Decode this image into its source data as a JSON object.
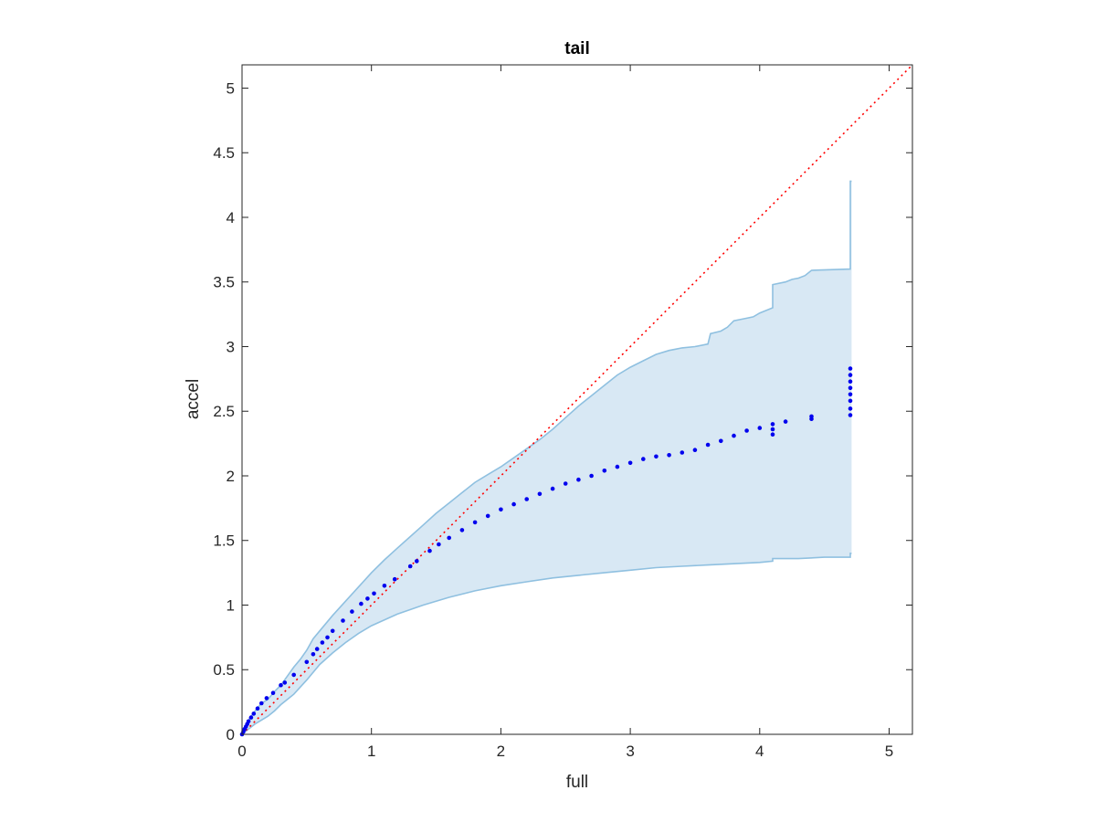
{
  "chart_data": {
    "type": "scatter",
    "title": "tail",
    "xlabel": "full",
    "ylabel": "accel",
    "xlim": [
      0,
      5.18
    ],
    "ylim": [
      0,
      5.18
    ],
    "xticks": [
      0,
      1,
      2,
      3,
      4,
      5
    ],
    "xtick_labels": [
      "0",
      "1",
      "2",
      "3",
      "4",
      "5"
    ],
    "yticks": [
      0,
      0.5,
      1,
      1.5,
      2,
      2.5,
      3,
      3.5,
      4,
      4.5,
      5
    ],
    "ytick_labels": [
      "0",
      "0.5",
      "1",
      "1.5",
      "2",
      "2.5",
      "3",
      "3.5",
      "4",
      "4.5",
      "5"
    ],
    "grid": false,
    "colors": {
      "points": "#0000ee",
      "band_fill": "#d8e8f4",
      "band_edge": "#8fc0e0",
      "reference_line": "#ff0000",
      "axes": "#262626"
    },
    "series": [
      {
        "kind": "points",
        "x": [
          0.0,
          0.01,
          0.02,
          0.03,
          0.04,
          0.05,
          0.07,
          0.09,
          0.12,
          0.15,
          0.19,
          0.24,
          0.3,
          0.33,
          0.4,
          0.5,
          0.55,
          0.58,
          0.62,
          0.66,
          0.7,
          0.78,
          0.85,
          0.92,
          0.97,
          1.02,
          1.1,
          1.18,
          1.3,
          1.35,
          1.45,
          1.52,
          1.6,
          1.7,
          1.8,
          1.9,
          2.0,
          2.1,
          2.2,
          2.3,
          2.4,
          2.5,
          2.6,
          2.7,
          2.8,
          2.9,
          3.0,
          3.1,
          3.2,
          3.3,
          3.4,
          3.5,
          3.6,
          3.7,
          3.8,
          3.9,
          4.0,
          4.1,
          4.1,
          4.1,
          4.2,
          4.4,
          4.4,
          4.7,
          4.7,
          4.7,
          4.7,
          4.7,
          4.7,
          4.7,
          4.7
        ],
        "y": [
          0.0,
          0.02,
          0.04,
          0.06,
          0.08,
          0.1,
          0.13,
          0.16,
          0.2,
          0.24,
          0.28,
          0.32,
          0.38,
          0.4,
          0.46,
          0.56,
          0.62,
          0.66,
          0.71,
          0.75,
          0.8,
          0.88,
          0.95,
          1.01,
          1.05,
          1.09,
          1.15,
          1.2,
          1.3,
          1.34,
          1.42,
          1.47,
          1.52,
          1.58,
          1.64,
          1.69,
          1.74,
          1.78,
          1.82,
          1.86,
          1.9,
          1.94,
          1.97,
          2.0,
          2.04,
          2.07,
          2.1,
          2.13,
          2.15,
          2.16,
          2.18,
          2.2,
          2.24,
          2.27,
          2.31,
          2.35,
          2.37,
          2.32,
          2.36,
          2.4,
          2.42,
          2.44,
          2.46,
          2.47,
          2.52,
          2.58,
          2.63,
          2.68,
          2.73,
          2.78,
          2.83
        ]
      },
      {
        "kind": "upper_bound",
        "x": [
          0.0,
          0.05,
          0.1,
          0.15,
          0.2,
          0.25,
          0.3,
          0.35,
          0.4,
          0.45,
          0.5,
          0.55,
          0.6,
          0.7,
          0.8,
          0.9,
          1.0,
          1.1,
          1.2,
          1.3,
          1.4,
          1.5,
          1.6,
          1.7,
          1.8,
          1.9,
          2.0,
          2.1,
          2.2,
          2.3,
          2.4,
          2.5,
          2.6,
          2.7,
          2.8,
          2.9,
          3.0,
          3.1,
          3.2,
          3.3,
          3.35,
          3.4,
          3.5,
          3.6,
          3.62,
          3.7,
          3.75,
          3.8,
          3.9,
          3.95,
          4.0,
          4.05,
          4.1,
          4.1,
          4.2,
          4.25,
          4.3,
          4.35,
          4.4,
          4.7,
          4.7,
          4.71
        ],
        "y": [
          0.0,
          0.11,
          0.18,
          0.24,
          0.27,
          0.33,
          0.38,
          0.45,
          0.52,
          0.58,
          0.65,
          0.74,
          0.8,
          0.92,
          1.03,
          1.14,
          1.25,
          1.35,
          1.44,
          1.53,
          1.62,
          1.71,
          1.79,
          1.87,
          1.95,
          2.01,
          2.07,
          2.14,
          2.21,
          2.28,
          2.36,
          2.45,
          2.54,
          2.62,
          2.7,
          2.78,
          2.84,
          2.89,
          2.94,
          2.97,
          2.98,
          2.99,
          3.0,
          3.02,
          3.1,
          3.12,
          3.15,
          3.2,
          3.22,
          3.23,
          3.26,
          3.28,
          3.3,
          3.48,
          3.5,
          3.52,
          3.53,
          3.55,
          3.59,
          3.6,
          4.28,
          4.28
        ]
      },
      {
        "kind": "lower_bound",
        "x": [
          0.0,
          0.05,
          0.1,
          0.15,
          0.2,
          0.25,
          0.3,
          0.4,
          0.5,
          0.6,
          0.7,
          0.8,
          0.9,
          1.0,
          1.2,
          1.4,
          1.6,
          1.8,
          2.0,
          2.2,
          2.4,
          2.6,
          2.8,
          3.0,
          3.2,
          3.4,
          3.6,
          3.8,
          4.0,
          4.1,
          4.1,
          4.3,
          4.5,
          4.7,
          4.7,
          4.71
        ],
        "y": [
          0.0,
          0.04,
          0.08,
          0.11,
          0.14,
          0.18,
          0.23,
          0.31,
          0.42,
          0.54,
          0.63,
          0.71,
          0.78,
          0.84,
          0.93,
          1.0,
          1.06,
          1.11,
          1.15,
          1.18,
          1.21,
          1.23,
          1.25,
          1.27,
          1.29,
          1.3,
          1.31,
          1.32,
          1.33,
          1.34,
          1.36,
          1.36,
          1.37,
          1.37,
          1.4,
          1.4
        ]
      },
      {
        "kind": "reference_line",
        "x": [
          0,
          5.18
        ],
        "y": [
          0,
          5.18
        ]
      }
    ]
  }
}
